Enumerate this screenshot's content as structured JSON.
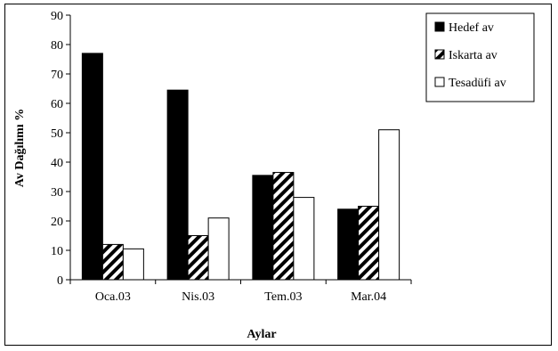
{
  "chart_data": {
    "type": "bar",
    "title": "",
    "xlabel": "Aylar",
    "ylabel": "Av Dağılımı %",
    "ylim": [
      0,
      90
    ],
    "ytick_step": 10,
    "yticks": [
      "0",
      "10",
      "20",
      "30",
      "40",
      "50",
      "60",
      "70",
      "80",
      "90"
    ],
    "categories": [
      "Oca.03",
      "Nis.03",
      "Tem.03",
      "Mar.04"
    ],
    "grid": false,
    "legend_position": "top-right",
    "series": [
      {
        "name": "Hedef av",
        "pattern": "solid-black",
        "values": [
          77,
          64.5,
          35.5,
          24
        ]
      },
      {
        "name": "Iskarta av",
        "pattern": "diagonal-hatch",
        "values": [
          12,
          15,
          36.5,
          25
        ]
      },
      {
        "name": "Tesadüfi av",
        "pattern": "white",
        "values": [
          10.5,
          21,
          28,
          51
        ]
      }
    ],
    "colors": {
      "ink": "#000000",
      "background": "#ffffff"
    }
  }
}
